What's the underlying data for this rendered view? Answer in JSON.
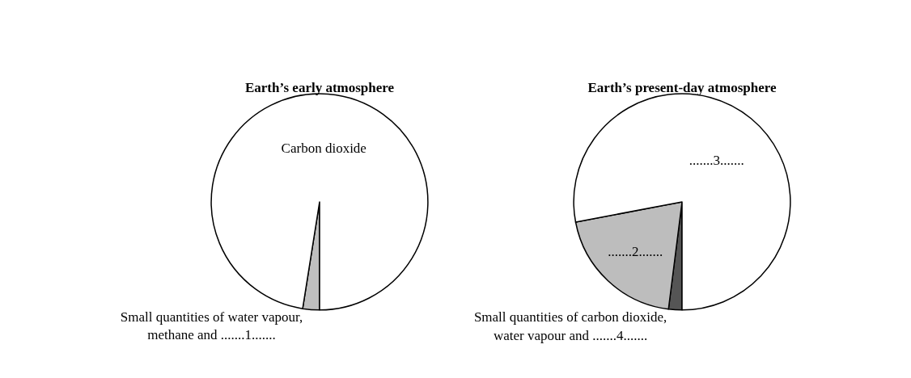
{
  "chart_data": [
    {
      "type": "pie",
      "title": "Earth’s early atmosphere",
      "categories": [
        "Small quantities of water vapour, methane and .......1.......",
        "Carbon dioxide"
      ],
      "values": [
        2.5,
        97.5
      ],
      "colors": [
        "#bfbfbf",
        "#ffffff"
      ]
    },
    {
      "type": "pie",
      "title": "Earth’s present-day atmosphere",
      "categories": [
        "Small quantities of carbon dioxide, water vapour and .......4.......",
        ".......2.......",
        ".......3......."
      ],
      "values": [
        2,
        20,
        78
      ],
      "colors": [
        "#555555",
        "#bdbdbd",
        "#ffffff"
      ]
    }
  ]
}
